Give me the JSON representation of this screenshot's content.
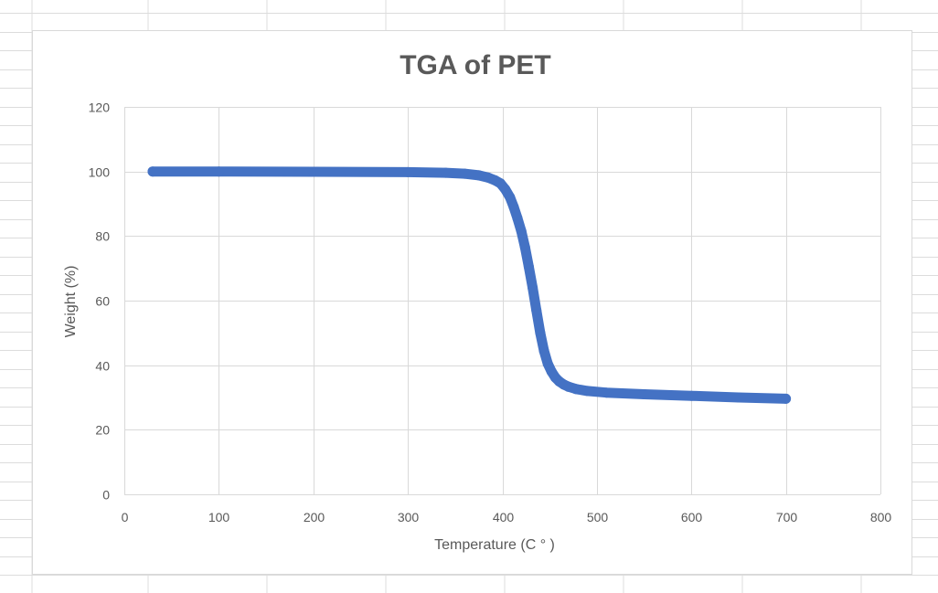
{
  "colors": {
    "series": "#4472C4",
    "gridline": "#d9d9d9",
    "text": "#595959",
    "sheet_grid": "#dcdcdc"
  },
  "chart_data": {
    "type": "scatter",
    "title": "TGA of PET",
    "xlabel": "Temperature (C ° )",
    "ylabel": "Weight (%)",
    "xlim": [
      0,
      800
    ],
    "ylim": [
      0,
      120
    ],
    "x_ticks": [
      "0",
      "100",
      "200",
      "300",
      "400",
      "500",
      "600",
      "700",
      "800"
    ],
    "y_ticks": [
      "0",
      "20",
      "40",
      "60",
      "80",
      "100",
      "120"
    ],
    "grid": true,
    "legend": "none",
    "series": [
      {
        "x": [
          30,
          100,
          200,
          300,
          340,
          360,
          375,
          385,
          392,
          398,
          403,
          408,
          412,
          416,
          420,
          424,
          428,
          432,
          436,
          440,
          444,
          448,
          452,
          456,
          460,
          465,
          470,
          478,
          490,
          510,
          550,
          600,
          650,
          700
        ],
        "y": [
          100,
          100,
          99.9,
          99.8,
          99.6,
          99.3,
          98.8,
          98.1,
          97.3,
          96.3,
          94.5,
          92.0,
          89.0,
          85.5,
          81.5,
          76.5,
          70.5,
          64.0,
          57.0,
          50.0,
          44.5,
          40.5,
          38.0,
          36.2,
          35.0,
          34.0,
          33.3,
          32.6,
          32.0,
          31.5,
          31.0,
          30.5,
          30.0,
          29.6
        ]
      }
    ]
  }
}
